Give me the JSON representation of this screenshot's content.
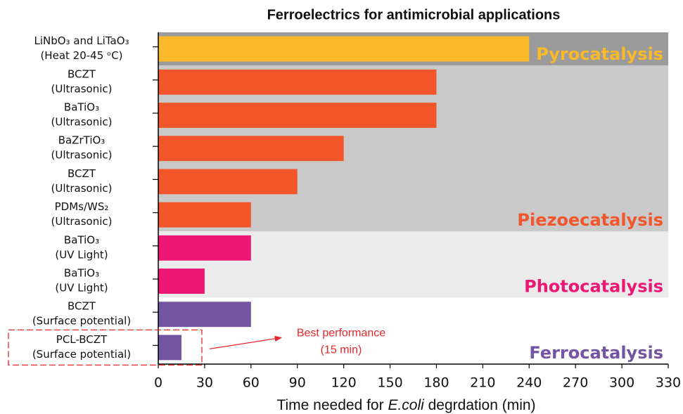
{
  "chart_data": {
    "type": "bar",
    "orientation": "horizontal",
    "title": "Ferroelectrics for antimicrobial applications",
    "xlabel_parts": [
      "Time needed for ",
      "E.coli",
      " degrdation (min)"
    ],
    "categories": [
      [
        "LiNbO₃ and LiTaO₃",
        "(Heat 20-45 ᵒC)"
      ],
      [
        "BCZT",
        "(Ultrasonic)"
      ],
      [
        "BaTiO₃",
        "(Ultrasonic)"
      ],
      [
        "BaZrTiO₃",
        "(Ultrasonic)"
      ],
      [
        "BCZT",
        "(Ultrasonic)"
      ],
      [
        "PDMs/WS₂",
        "(Ultrasonic)"
      ],
      [
        "BaTiO₃",
        "(UV Light)"
      ],
      [
        "BaTiO₃",
        "(UV Light)"
      ],
      [
        "BCZT",
        "(Surface potential)"
      ],
      [
        "PCL-BCZT",
        "(Surface potential)"
      ]
    ],
    "series": [
      {
        "name": "Pyrocatalysis",
        "color": "#fbb829",
        "band_color": "#9b9b9b",
        "values": [
          240,
          null,
          null,
          null,
          null,
          null,
          null,
          null,
          null,
          null
        ]
      },
      {
        "name": "Piezoecatalysis",
        "color": "#f2562a",
        "band_color": "#c9c9c9",
        "values": [
          null,
          180,
          180,
          120,
          90,
          60,
          null,
          null,
          null,
          null
        ]
      },
      {
        "name": "Photocatalysis",
        "color": "#ec1673",
        "band_color": "#ebebec",
        "values": [
          null,
          null,
          null,
          null,
          null,
          null,
          60,
          30,
          null,
          null
        ]
      },
      {
        "name": "Ferrocatalysis",
        "color": "#7455a4",
        "band_color": "#ffffff",
        "values": [
          null,
          null,
          null,
          null,
          null,
          null,
          null,
          null,
          60,
          15
        ]
      }
    ],
    "annotation": {
      "text": [
        "Best performance",
        "(15 min)"
      ],
      "color": "#e5262b"
    },
    "xlim": [
      0,
      330
    ],
    "xticks": [
      0,
      30,
      60,
      90,
      120,
      150,
      180,
      210,
      240,
      270,
      300,
      330
    ]
  }
}
